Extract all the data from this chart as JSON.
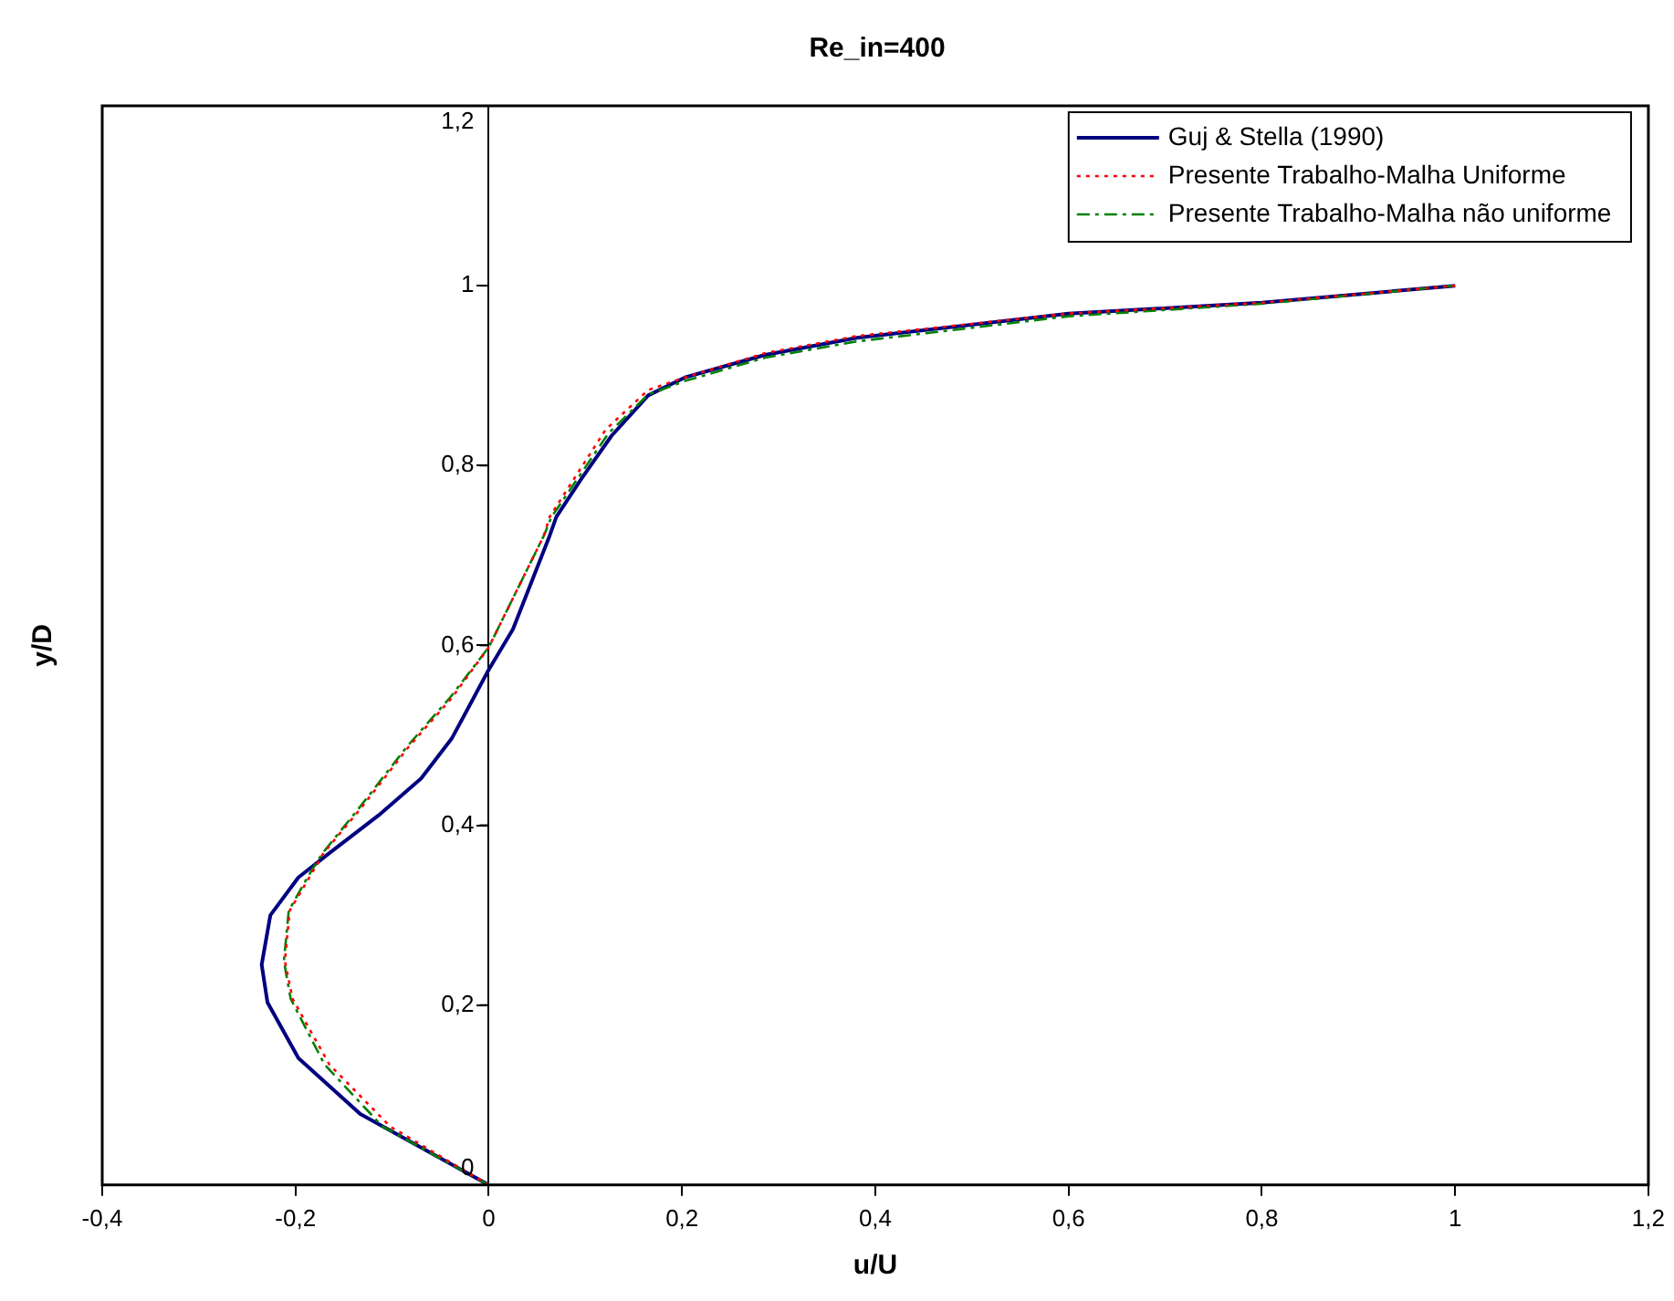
{
  "chart_data": {
    "type": "line",
    "title": "Re_in=400",
    "xlabel": "u/U",
    "ylabel": "y/D",
    "xlim": [
      -0.4,
      1.2
    ],
    "ylim": [
      0,
      1.2
    ],
    "xticks": [
      {
        "value": -0.4,
        "label": "-0,4"
      },
      {
        "value": -0.2,
        "label": "-0,2"
      },
      0,
      {
        "value": 0.2,
        "label": "0,2"
      },
      {
        "value": 0.4,
        "label": "0,4"
      },
      {
        "value": 0.6,
        "label": "0,6"
      },
      {
        "value": 0.8,
        "label": "0,8"
      },
      1,
      {
        "value": 1.2,
        "label": "1,2"
      }
    ],
    "yticks": [
      0,
      {
        "value": 0.2,
        "label": "0,2"
      },
      {
        "value": 0.4,
        "label": "0,4"
      },
      {
        "value": 0.6,
        "label": "0,6"
      },
      {
        "value": 0.8,
        "label": "0,8"
      },
      1,
      {
        "value": 1.2,
        "label": "1,2"
      }
    ],
    "grid": false,
    "legend": "top right",
    "marker": "none",
    "series": [
      {
        "name": "Guj & Stella (1990)",
        "color": "#000080",
        "line_style": "solid",
        "x": [
          0,
          -0.133,
          -0.197,
          -0.229,
          -0.235,
          -0.226,
          -0.197,
          -0.165,
          -0.114,
          -0.07,
          -0.038,
          -0.019,
          0,
          0.025,
          0.063,
          0.07,
          0.095,
          0.127,
          0.165,
          0.203,
          0.286,
          0.381,
          0.6,
          0.8,
          1
        ],
        "values": [
          0,
          0.079,
          0.141,
          0.203,
          0.245,
          0.3,
          0.342,
          0.369,
          0.411,
          0.452,
          0.497,
          0.535,
          0.573,
          0.618,
          0.722,
          0.743,
          0.784,
          0.833,
          0.878,
          0.898,
          0.923,
          0.942,
          0.969,
          0.981,
          1
        ]
      },
      {
        "name": "Presente Trabalho-Malha Uniforme",
        "color": "#ff0000",
        "line_style": "dotted",
        "x": [
          0,
          -0.102,
          -0.165,
          -0.203,
          -0.211,
          -0.206,
          -0.184,
          -0.171,
          -0.133,
          -0.083,
          -0.038,
          0,
          0.057,
          0.063,
          0.121,
          0.165,
          0.203,
          0.286,
          0.381,
          0.6,
          0.8,
          1
        ],
        "values": [
          0,
          0.065,
          0.134,
          0.207,
          0.249,
          0.305,
          0.345,
          0.369,
          0.418,
          0.487,
          0.542,
          0.598,
          0.722,
          0.743,
          0.84,
          0.884,
          0.898,
          0.925,
          0.944,
          0.969,
          0.981,
          1
        ]
      },
      {
        "name": "Presente Trabalho-Malha não uniforme",
        "color": "#008000",
        "line_style": "dashed",
        "x": [
          0,
          -0.11,
          -0.17,
          -0.205,
          -0.212,
          -0.207,
          -0.186,
          -0.172,
          -0.135,
          -0.085,
          -0.04,
          0,
          0.057,
          0.065,
          0.124,
          0.165,
          0.203,
          0.286,
          0.381,
          0.6,
          0.8,
          1
        ],
        "values": [
          0,
          0.065,
          0.134,
          0.207,
          0.249,
          0.305,
          0.345,
          0.369,
          0.418,
          0.487,
          0.542,
          0.598,
          0.722,
          0.743,
          0.836,
          0.879,
          0.894,
          0.92,
          0.938,
          0.966,
          0.98,
          1
        ]
      }
    ]
  }
}
